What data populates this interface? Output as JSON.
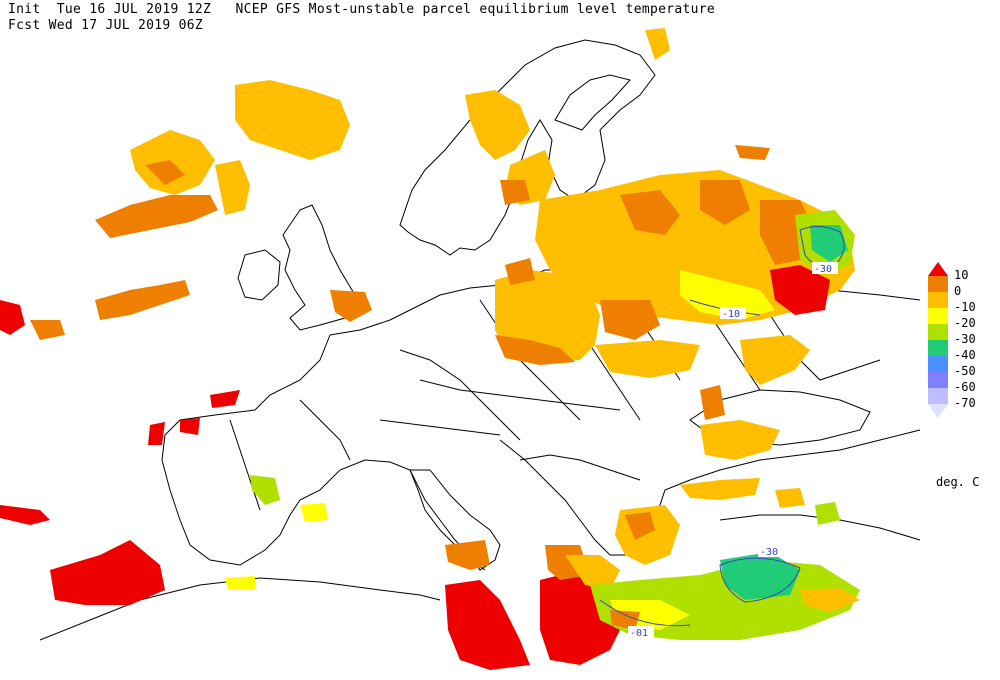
{
  "header": {
    "init_line": "Init  Tue 16 JUL 2019 12Z   NCEP GFS Most-unstable parcel equilibrium level temperature",
    "fcst_line": "Fcst Wed 17 JUL 2019 06Z"
  },
  "legend": {
    "levels": [
      {
        "label": "10",
        "color": "#ee0000"
      },
      {
        "label": "0",
        "color": "#ee7f00"
      },
      {
        "label": "-10",
        "color": "#ffbf00"
      },
      {
        "label": "-20",
        "color": "#ffff00"
      },
      {
        "label": "-30",
        "color": "#b0e000"
      },
      {
        "label": "-40",
        "color": "#22cc77"
      },
      {
        "label": "-50",
        "color": "#4a90ff"
      },
      {
        "label": "-60",
        "color": "#8080ff"
      },
      {
        "label": "-70",
        "color": "#bdbdff"
      }
    ],
    "overflow_top_color": "#ee0000",
    "overflow_bottom_color": "#e0e0ff",
    "units": "deg. C"
  },
  "contour_labels": [
    "-30",
    "-10",
    "-30",
    "-01"
  ],
  "colors": {
    "red": "#ee0000",
    "orange": "#ee7f00",
    "amber": "#ffbf00",
    "yellow": "#ffff00",
    "lime": "#b0e000",
    "green": "#22cc77",
    "coast": "#000000",
    "contour": "#3344bb"
  }
}
